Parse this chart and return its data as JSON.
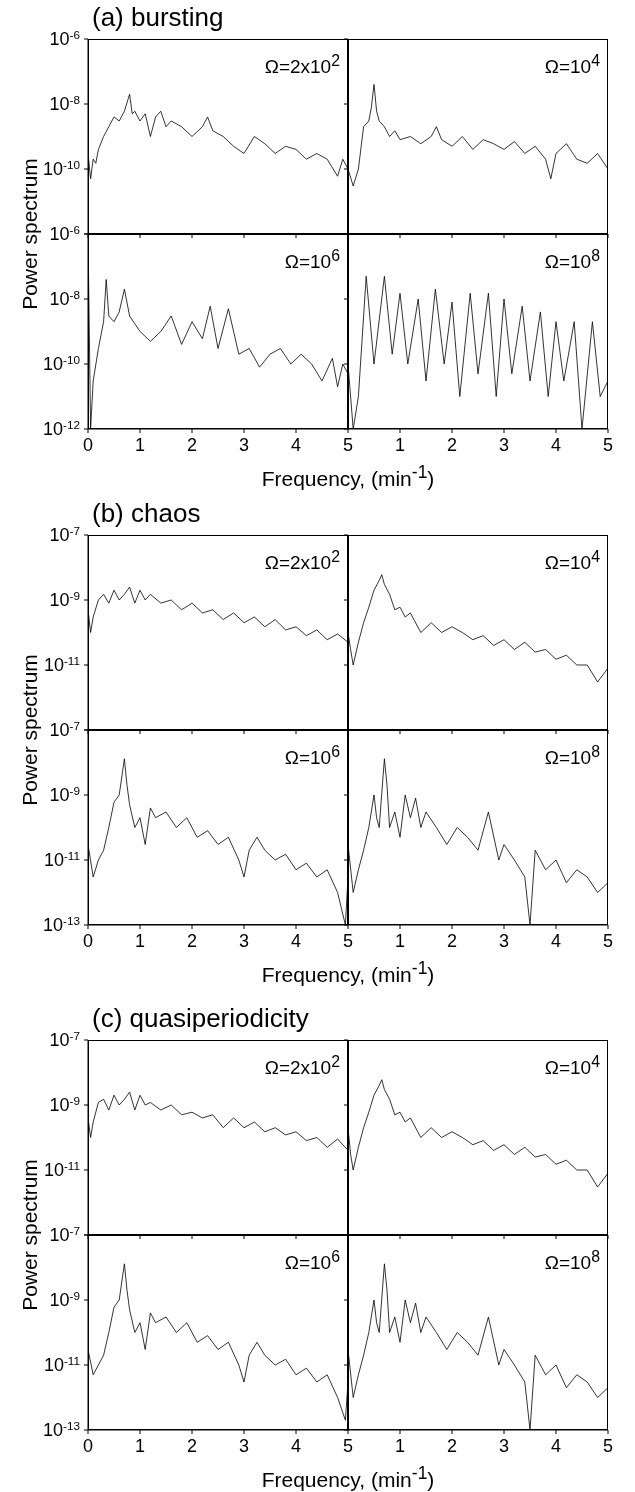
{
  "chart_data": [
    {
      "type": "line",
      "title": "(a) bursting",
      "annotations": [
        "Ω=2x10$^{2}$"
      ],
      "log": "y",
      "tick_labels": "y",
      "xlim": [
        0,
        5
      ],
      "xticks": [
        0,
        1,
        2,
        3,
        4,
        5
      ],
      "ylim": [
        1e-12,
        1e-06
      ],
      "yticks": [
        {
          "value": 1e-06,
          "label": "10$^{-6}$"
        },
        {
          "value": 1e-08,
          "label": "10$^{-8}$"
        },
        {
          "value": 1e-10,
          "label": "10$^{-10}$"
        },
        {
          "value": 1e-12,
          "label": null
        }
      ],
      "color": "#000000",
      "x": [
        0,
        0.05,
        0.1,
        0.15,
        0.2,
        0.3,
        0.4,
        0.5,
        0.6,
        0.7,
        0.8,
        0.85,
        0.9,
        1.0,
        1.1,
        1.2,
        1.3,
        1.4,
        1.5,
        1.6,
        1.8,
        2.0,
        2.2,
        2.3,
        2.4,
        2.6,
        2.8,
        3.0,
        3.2,
        3.4,
        3.6,
        3.8,
        4.0,
        4.2,
        4.4,
        4.6,
        4.8,
        4.9,
        5.0
      ],
      "values": [
        3e-10,
        5e-11,
        2e-10,
        1.5e-10,
        4e-10,
        1e-09,
        2e-09,
        4e-09,
        3e-09,
        6e-09,
        2e-08,
        5e-09,
        6e-09,
        3e-09,
        5e-09,
        1e-09,
        4e-09,
        6e-09,
        2e-09,
        3e-09,
        2e-09,
        1e-09,
        2e-09,
        4e-09,
        1.5e-09,
        1e-09,
        5e-10,
        3e-10,
        1e-09,
        6e-10,
        3e-10,
        5e-10,
        4e-10,
        2e-10,
        3e-10,
        2e-10,
        6e-11,
        2e-10,
        1e-10
      ]
    },
    {
      "type": "line",
      "annotations": [
        "Ω=10$^{4}$"
      ],
      "log": "y",
      "tick_labels": false,
      "xlim": [
        0,
        5
      ],
      "xticks": [
        0,
        1,
        2,
        3,
        4,
        5
      ],
      "ylim": [
        1e-12,
        1e-06
      ],
      "yticks": [
        1e-06,
        1e-08,
        1e-10,
        1e-12
      ],
      "color": "#000000",
      "x": [
        0,
        0.1,
        0.2,
        0.3,
        0.4,
        0.45,
        0.5,
        0.55,
        0.6,
        0.7,
        0.8,
        0.9,
        1.0,
        1.2,
        1.4,
        1.6,
        1.7,
        1.8,
        2.0,
        2.2,
        2.4,
        2.6,
        2.8,
        3.0,
        3.2,
        3.4,
        3.6,
        3.8,
        3.9,
        4.0,
        4.2,
        4.4,
        4.6,
        4.8,
        5.0
      ],
      "values": [
        1e-10,
        3e-11,
        1e-10,
        2e-09,
        3e-09,
        8e-09,
        4e-08,
        6e-09,
        3e-09,
        2e-09,
        1e-09,
        1.5e-09,
        8e-10,
        1e-09,
        6e-10,
        1e-09,
        2e-09,
        8e-10,
        5e-10,
        1e-09,
        4e-10,
        8e-10,
        6e-10,
        4e-10,
        7e-10,
        3e-10,
        5e-10,
        2e-10,
        5e-11,
        3e-10,
        6e-10,
        2e-10,
        1.5e-10,
        3e-10,
        1e-10
      ]
    },
    {
      "type": "line",
      "annotations": [
        "Ω=10$^{6}$"
      ],
      "xlabel": "Frequency, (min$^{-1}$)",
      "ylabel": "Power spectrum",
      "log": "y",
      "xlim": [
        0,
        5
      ],
      "xticks": [
        0,
        1,
        2,
        3,
        4,
        5
      ],
      "ylim": [
        1e-12,
        1e-06
      ],
      "yticks": [
        {
          "value": 1e-06,
          "label": "10$^{-6}$"
        },
        {
          "value": 1e-08,
          "label": "10$^{-8}$"
        },
        {
          "value": 1e-10,
          "label": "10$^{-10}$"
        },
        {
          "value": 1e-12,
          "label": "10$^{-12}$"
        }
      ],
      "color": "#000000",
      "x": [
        0,
        0.05,
        0.1,
        0.2,
        0.3,
        0.35,
        0.4,
        0.5,
        0.6,
        0.7,
        0.8,
        1.0,
        1.2,
        1.4,
        1.6,
        1.8,
        2.0,
        2.2,
        2.35,
        2.5,
        2.7,
        2.9,
        3.1,
        3.3,
        3.5,
        3.7,
        3.9,
        4.1,
        4.3,
        4.5,
        4.7,
        4.8,
        4.9,
        5.0
      ],
      "values": [
        1e-06,
        1e-12,
        3e-11,
        3e-10,
        2e-09,
        4e-08,
        3e-09,
        2e-09,
        4e-09,
        2e-08,
        3e-09,
        1e-09,
        5e-10,
        1e-09,
        3e-09,
        4e-10,
        2e-09,
        6e-10,
        6e-09,
        3e-10,
        5e-09,
        2e-10,
        3e-10,
        8e-11,
        2e-10,
        3e-10,
        1e-10,
        2e-10,
        1e-10,
        3e-11,
        1.5e-10,
        2e-11,
        1e-10,
        5e-11
      ]
    },
    {
      "type": "line",
      "annotations": [
        "Ω=10$^{8}$"
      ],
      "log": "y",
      "tick_labels": "x",
      "xlim": [
        0,
        5
      ],
      "xticks": [
        1,
        2,
        3,
        4,
        5
      ],
      "ylim": [
        1e-12,
        1e-06
      ],
      "yticks": [
        1e-06,
        1e-08,
        1e-10,
        1e-12
      ],
      "color": "#000000",
      "x": [
        0,
        0.1,
        0.2,
        0.35,
        0.5,
        0.7,
        0.85,
        1.0,
        1.15,
        1.35,
        1.5,
        1.68,
        1.85,
        2.0,
        2.15,
        2.35,
        2.5,
        2.7,
        2.85,
        3.0,
        3.15,
        3.35,
        3.5,
        3.7,
        3.85,
        4.0,
        4.15,
        4.35,
        4.5,
        4.7,
        4.85,
        5.0
      ],
      "values": [
        1e-10,
        1e-12,
        1e-11,
        5e-08,
        1e-10,
        5e-08,
        2e-10,
        1.5e-08,
        1e-10,
        1e-08,
        3e-11,
        2e-08,
        1e-10,
        8e-09,
        1e-11,
        1.5e-08,
        5e-11,
        1.5e-08,
        1e-11,
        1e-08,
        5e-11,
        6e-09,
        3e-11,
        4e-09,
        1e-11,
        2e-09,
        3e-11,
        2e-09,
        1e-12,
        2e-09,
        1e-11,
        3e-11
      ]
    },
    {
      "type": "line",
      "title": "(b) chaos",
      "annotations": [
        "Ω=2x10$^{2}$"
      ],
      "log": "y",
      "tick_labels": "y",
      "xlim": [
        0,
        5
      ],
      "xticks": [
        0,
        1,
        2,
        3,
        4,
        5
      ],
      "ylim": [
        1e-13,
        1e-07
      ],
      "yticks": [
        {
          "value": 1e-07,
          "label": "10$^{-7}$"
        },
        {
          "value": 1e-09,
          "label": "10$^{-9}$"
        },
        {
          "value": 1e-11,
          "label": "10$^{-11}$"
        },
        {
          "value": 1e-13,
          "label": null
        }
      ],
      "color": "#000000",
      "x": [
        0,
        0.05,
        0.1,
        0.2,
        0.3,
        0.4,
        0.5,
        0.6,
        0.7,
        0.8,
        0.9,
        1.0,
        1.1,
        1.2,
        1.4,
        1.6,
        1.8,
        2.0,
        2.2,
        2.4,
        2.6,
        2.8,
        3.0,
        3.2,
        3.4,
        3.6,
        3.8,
        4.0,
        4.2,
        4.4,
        4.6,
        4.8,
        5.0
      ],
      "values": [
        5e-10,
        1e-10,
        3e-10,
        1e-09,
        1.5e-09,
        8e-10,
        2e-09,
        1e-09,
        1.5e-09,
        2.5e-09,
        8e-10,
        2e-09,
        1e-09,
        1.5e-09,
        8e-10,
        1e-09,
        5e-10,
        8e-10,
        4e-10,
        5e-10,
        2.5e-10,
        4e-10,
        2e-10,
        3e-10,
        1.5e-10,
        2.5e-10,
        1.2e-10,
        1.5e-10,
        8e-11,
        1.2e-10,
        6e-11,
        9e-11,
        5e-11
      ]
    },
    {
      "type": "line",
      "annotations": [
        "Ω=10$^{4}$"
      ],
      "log": "y",
      "tick_labels": false,
      "xlim": [
        0,
        5
      ],
      "xticks": [
        0,
        1,
        2,
        3,
        4,
        5
      ],
      "ylim": [
        1e-13,
        1e-07
      ],
      "yticks": [
        1e-07,
        1e-09,
        1e-11,
        1e-13
      ],
      "color": "#000000",
      "x": [
        0,
        0.05,
        0.1,
        0.2,
        0.3,
        0.4,
        0.5,
        0.6,
        0.65,
        0.7,
        0.8,
        0.9,
        1.0,
        1.1,
        1.2,
        1.4,
        1.6,
        1.8,
        2.0,
        2.2,
        2.4,
        2.6,
        2.8,
        3.0,
        3.2,
        3.4,
        3.6,
        3.8,
        4.0,
        4.2,
        4.4,
        4.6,
        4.8,
        5.0
      ],
      "values": [
        1e-10,
        3e-11,
        1e-11,
        5e-11,
        2e-10,
        6e-10,
        2e-09,
        4e-09,
        6e-09,
        3e-09,
        1.5e-09,
        5e-10,
        6e-10,
        3e-10,
        4e-10,
        1e-10,
        2e-10,
        1e-10,
        1.5e-10,
        1e-10,
        6e-11,
        8e-11,
        4e-11,
        6e-11,
        3e-11,
        5e-11,
        2.5e-11,
        3e-11,
        1.5e-11,
        2e-11,
        1e-11,
        1e-11,
        3e-12,
        8e-12
      ]
    },
    {
      "type": "line",
      "annotations": [
        "Ω=10$^{6}$"
      ],
      "xlabel": "Frequency, (min$^{-1}$)",
      "ylabel": "Power spectrum",
      "log": "y",
      "xlim": [
        0,
        5
      ],
      "xticks": [
        0,
        1,
        2,
        3,
        4,
        5
      ],
      "ylim": [
        1e-13,
        1e-07
      ],
      "yticks": [
        {
          "value": 1e-07,
          "label": "10$^{-7}$"
        },
        {
          "value": 1e-09,
          "label": "10$^{-9}$"
        },
        {
          "value": 1e-11,
          "label": "10$^{-11}$"
        },
        {
          "value": 1e-13,
          "label": "10$^{-13}$"
        }
      ],
      "color": "#000000",
      "x": [
        0,
        0.1,
        0.2,
        0.3,
        0.4,
        0.5,
        0.6,
        0.7,
        0.75,
        0.8,
        0.9,
        1.0,
        1.1,
        1.2,
        1.3,
        1.5,
        1.7,
        1.9,
        2.1,
        2.3,
        2.5,
        2.7,
        2.9,
        3.0,
        3.1,
        3.25,
        3.4,
        3.6,
        3.8,
        4.0,
        4.2,
        4.4,
        4.6,
        4.8,
        4.95,
        5.0
      ],
      "values": [
        3e-11,
        3e-12,
        1e-11,
        2e-11,
        1e-10,
        6e-10,
        1e-09,
        1.3e-08,
        2e-09,
        5e-10,
        1e-10,
        2e-10,
        3e-11,
        4e-10,
        2e-10,
        3e-10,
        1e-10,
        2e-10,
        5e-11,
        8e-11,
        3e-11,
        5e-11,
        1e-11,
        3e-12,
        2e-11,
        5e-11,
        2e-11,
        1e-11,
        1.5e-11,
        5e-12,
        8e-12,
        3e-12,
        5e-12,
        1e-12,
        1e-13,
        3e-12
      ]
    },
    {
      "type": "line",
      "annotations": [
        "Ω=10$^{8}$"
      ],
      "log": "y",
      "tick_labels": "x",
      "xlim": [
        0,
        5
      ],
      "xticks": [
        1,
        2,
        3,
        4,
        5
      ],
      "ylim": [
        1e-13,
        1e-07
      ],
      "yticks": [
        1e-07,
        1e-09,
        1e-11,
        1e-13
      ],
      "color": "#000000",
      "x": [
        0,
        0.1,
        0.2,
        0.3,
        0.4,
        0.5,
        0.55,
        0.6,
        0.7,
        0.75,
        0.8,
        0.9,
        1.0,
        1.1,
        1.2,
        1.3,
        1.4,
        1.5,
        1.7,
        1.9,
        2.1,
        2.3,
        2.5,
        2.7,
        2.9,
        3.0,
        3.2,
        3.4,
        3.5,
        3.6,
        3.8,
        4.0,
        4.2,
        4.4,
        4.6,
        4.8,
        5.0
      ],
      "values": [
        3e-11,
        1e-12,
        5e-12,
        2e-11,
        1e-10,
        1e-09,
        2e-10,
        1e-10,
        1.3e-08,
        2e-09,
        1e-10,
        3e-10,
        5e-11,
        1e-09,
        2e-10,
        8e-10,
        1e-10,
        3e-10,
        1e-10,
        3e-11,
        1e-10,
        5e-11,
        2e-11,
        3e-10,
        1e-11,
        3e-11,
        1e-11,
        3e-12,
        1e-13,
        2e-11,
        5e-12,
        1e-11,
        2e-12,
        5e-12,
        3e-12,
        1e-12,
        2e-12
      ]
    },
    {
      "type": "line",
      "title": "(c) quasiperiodicity",
      "annotations": [
        "Ω=2x10$^{2}$"
      ],
      "log": "y",
      "tick_labels": "y",
      "xlim": [
        0,
        5
      ],
      "xticks": [
        0,
        1,
        2,
        3,
        4,
        5
      ],
      "ylim": [
        1e-13,
        1e-07
      ],
      "yticks": [
        {
          "value": 1e-07,
          "label": "10$^{-7}$"
        },
        {
          "value": 1e-09,
          "label": "10$^{-9}$"
        },
        {
          "value": 1e-11,
          "label": "10$^{-11}$"
        },
        {
          "value": 1e-13,
          "label": null
        }
      ],
      "color": "#000000",
      "x": [
        0,
        0.05,
        0.1,
        0.2,
        0.3,
        0.4,
        0.5,
        0.6,
        0.7,
        0.8,
        0.9,
        1.0,
        1.1,
        1.2,
        1.4,
        1.6,
        1.8,
        2.0,
        2.2,
        2.4,
        2.6,
        2.8,
        3.0,
        3.2,
        3.4,
        3.6,
        3.8,
        4.0,
        4.2,
        4.4,
        4.6,
        4.8,
        5.0
      ],
      "values": [
        4e-10,
        1e-10,
        3e-10,
        1.2e-09,
        1.5e-09,
        7e-10,
        2e-09,
        1e-09,
        1.5e-09,
        2.5e-09,
        7e-10,
        2e-09,
        1e-09,
        1.2e-09,
        7e-10,
        1e-09,
        5e-10,
        6e-10,
        4e-10,
        5e-10,
        2e-10,
        4e-10,
        2e-10,
        3e-10,
        1.5e-10,
        2e-10,
        1.2e-10,
        1.5e-10,
        8e-11,
        1e-10,
        5e-11,
        9e-11,
        4e-11
      ]
    },
    {
      "type": "line",
      "annotations": [
        "Ω=10$^{4}$"
      ],
      "log": "y",
      "tick_labels": false,
      "xlim": [
        0,
        5
      ],
      "xticks": [
        0,
        1,
        2,
        3,
        4,
        5
      ],
      "ylim": [
        1e-13,
        1e-07
      ],
      "yticks": [
        1e-07,
        1e-09,
        1e-11,
        1e-13
      ],
      "color": "#000000",
      "x": [
        0,
        0.05,
        0.1,
        0.2,
        0.3,
        0.4,
        0.5,
        0.6,
        0.65,
        0.7,
        0.8,
        0.9,
        1.0,
        1.1,
        1.2,
        1.4,
        1.6,
        1.8,
        2.0,
        2.2,
        2.4,
        2.6,
        2.8,
        3.0,
        3.2,
        3.4,
        3.6,
        3.8,
        4.0,
        4.2,
        4.4,
        4.6,
        4.8,
        5.0
      ],
      "values": [
        2e-10,
        3e-11,
        1e-11,
        5e-11,
        2e-10,
        6e-10,
        2e-09,
        4e-09,
        6e-09,
        3e-09,
        1.5e-09,
        5e-10,
        6e-10,
        3e-10,
        4e-10,
        1e-10,
        2e-10,
        1e-10,
        1.5e-10,
        1e-10,
        6e-11,
        8e-11,
        4e-11,
        6e-11,
        3e-11,
        5e-11,
        2.5e-11,
        3e-11,
        1.5e-11,
        2e-11,
        1e-11,
        1e-11,
        3e-12,
        8e-12
      ]
    },
    {
      "type": "line",
      "annotations": [
        "Ω=10$^{6}$"
      ],
      "xlabel": "Frequency, (min$^{-1}$)",
      "ylabel": "Power spectrum",
      "log": "y",
      "xlim": [
        0,
        5
      ],
      "xticks": [
        0,
        1,
        2,
        3,
        4,
        5
      ],
      "ylim": [
        1e-13,
        1e-07
      ],
      "yticks": [
        {
          "value": 1e-07,
          "label": "10$^{-7}$"
        },
        {
          "value": 1e-09,
          "label": "10$^{-9}$"
        },
        {
          "value": 1e-11,
          "label": "10$^{-11}$"
        },
        {
          "value": 1e-13,
          "label": "10$^{-13}$"
        }
      ],
      "color": "#000000",
      "x": [
        0,
        0.1,
        0.2,
        0.3,
        0.4,
        0.5,
        0.6,
        0.7,
        0.75,
        0.8,
        0.9,
        1.0,
        1.1,
        1.2,
        1.3,
        1.5,
        1.7,
        1.9,
        2.1,
        2.3,
        2.5,
        2.7,
        2.9,
        3.0,
        3.1,
        3.25,
        3.4,
        3.6,
        3.8,
        4.0,
        4.2,
        4.4,
        4.6,
        4.8,
        4.95,
        5.0
      ],
      "values": [
        3e-11,
        5e-12,
        1e-11,
        2e-11,
        1e-10,
        6e-10,
        1e-09,
        1.3e-08,
        2e-09,
        5e-10,
        1e-10,
        2e-10,
        3e-11,
        4e-10,
        2e-10,
        3e-10,
        1e-10,
        2e-10,
        5e-11,
        8e-11,
        3e-11,
        5e-11,
        1e-11,
        3e-12,
        2e-11,
        5e-11,
        2e-11,
        1e-11,
        1.5e-11,
        5e-12,
        8e-12,
        3e-12,
        5e-12,
        1e-12,
        2e-13,
        3e-12
      ]
    },
    {
      "type": "line",
      "annotations": [
        "Ω=10$^{8}$"
      ],
      "log": "y",
      "tick_labels": "x",
      "xlim": [
        0,
        5
      ],
      "xticks": [
        1,
        2,
        3,
        4,
        5
      ],
      "ylim": [
        1e-13,
        1e-07
      ],
      "yticks": [
        1e-07,
        1e-09,
        1e-11,
        1e-13
      ],
      "color": "#000000",
      "x": [
        0,
        0.1,
        0.2,
        0.3,
        0.4,
        0.5,
        0.55,
        0.6,
        0.7,
        0.75,
        0.8,
        0.9,
        1.0,
        1.1,
        1.2,
        1.3,
        1.4,
        1.5,
        1.7,
        1.9,
        2.1,
        2.3,
        2.5,
        2.7,
        2.9,
        3.0,
        3.2,
        3.4,
        3.5,
        3.6,
        3.8,
        4.0,
        4.2,
        4.4,
        4.6,
        4.8,
        5.0
      ],
      "values": [
        3e-11,
        1e-12,
        5e-12,
        2e-11,
        1e-10,
        1e-09,
        2e-10,
        1e-10,
        1.3e-08,
        2e-09,
        1e-10,
        3e-10,
        5e-11,
        1e-09,
        2e-10,
        8e-10,
        1e-10,
        3e-10,
        1e-10,
        3e-11,
        1e-10,
        5e-11,
        2e-11,
        3e-10,
        1e-11,
        3e-11,
        1e-11,
        3e-12,
        1e-13,
        2e-11,
        5e-12,
        1e-11,
        2e-12,
        5e-12,
        3e-12,
        1e-12,
        2e-12
      ]
    }
  ]
}
